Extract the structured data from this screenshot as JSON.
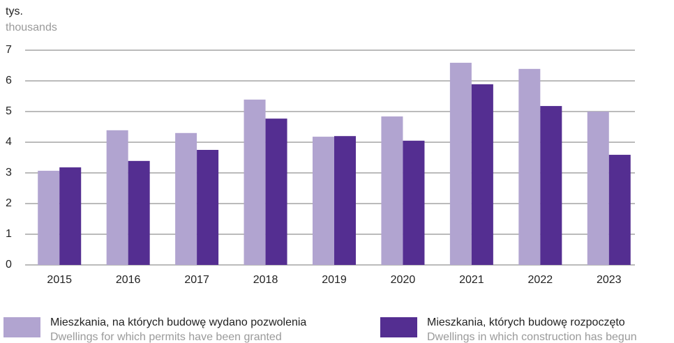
{
  "chart_data": {
    "type": "bar",
    "y_unit": "tys.",
    "y_unit_en": "thousands",
    "categories": [
      "2015",
      "2016",
      "2017",
      "2018",
      "2019",
      "2020",
      "2021",
      "2022",
      "2023"
    ],
    "series": [
      {
        "name": "Mieszkania, na których budowę wydano pozwolenia",
        "name_en": "Dwellings for which permits have been granted",
        "color": "#b1a4d0",
        "values": [
          3.07,
          4.39,
          4.3,
          5.39,
          4.18,
          4.84,
          6.59,
          6.39,
          5.0
        ]
      },
      {
        "name": "Mieszkania, których budowę rozpoczęto",
        "name_en": "Dwellings in which construction has begun",
        "color": "#542e91",
        "values": [
          3.18,
          3.39,
          3.75,
          4.77,
          4.2,
          4.05,
          5.89,
          5.18,
          3.59
        ]
      }
    ],
    "ylim": [
      0,
      7
    ],
    "yticks": [
      0,
      1,
      2,
      3,
      4,
      5,
      6,
      7
    ],
    "grid": true
  }
}
